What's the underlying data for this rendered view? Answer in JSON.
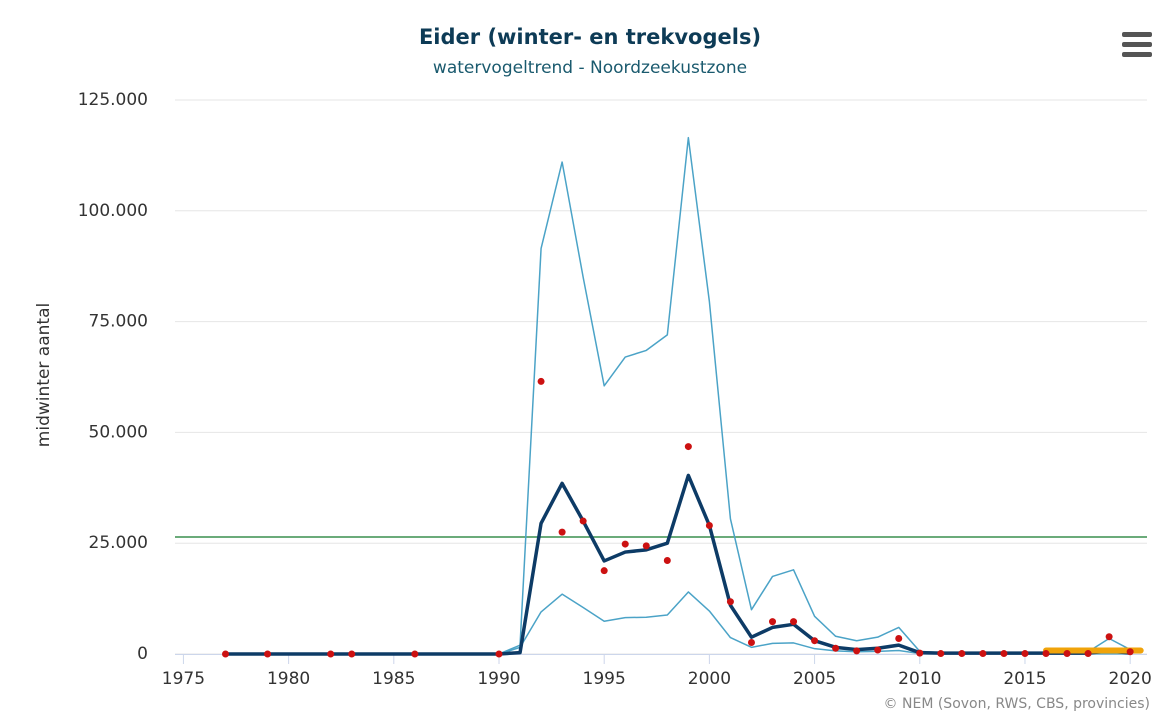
{
  "chart_data": {
    "type": "line",
    "title": "Eider (winter- en trekvogels)",
    "subtitle": "watervogeltrend - Noordzeekustzone",
    "y_label": "midwinter aantal",
    "credit": "© NEM (Sovon, RWS, CBS, provincies)",
    "xlim": [
      1974.6,
      2020.8
    ],
    "xticks": [
      1975,
      1980,
      1985,
      1990,
      1995,
      2000,
      2005,
      2010,
      2015,
      2020
    ],
    "ylim": [
      0,
      125000
    ],
    "yticks": [
      0,
      {
        "value": 25000,
        "label": "25.000"
      },
      {
        "value": 50000,
        "label": "50.000"
      },
      {
        "value": 75000,
        "label": "75.000"
      },
      {
        "value": 100000,
        "label": "100.000"
      },
      {
        "value": 125000,
        "label": "125.000"
      }
    ],
    "grid": true,
    "reference_line": {
      "value": 26400,
      "color": "#3a8f4f"
    },
    "x": [
      1977,
      1978,
      1979,
      1980,
      1981,
      1982,
      1983,
      1984,
      1985,
      1986,
      1987,
      1988,
      1989,
      1990,
      1991,
      1992,
      1993,
      1994,
      1995,
      1996,
      1997,
      1998,
      1999,
      2000,
      2001,
      2002,
      2003,
      2004,
      2005,
      2006,
      2007,
      2008,
      2009,
      2010,
      2011,
      2012,
      2013,
      2014,
      2015,
      2016,
      2017,
      2018,
      2019,
      2020
    ],
    "series": [
      {
        "kind": "line",
        "color": "#4ba3c7",
        "width": 1.5,
        "values": [
          0,
          0,
          0,
          0,
          0,
          0,
          0,
          0,
          0,
          0,
          0,
          0,
          0,
          0,
          2000,
          91500,
          111000,
          85000,
          60500,
          67000,
          68500,
          72000,
          116500,
          79500,
          30500,
          10000,
          17500,
          19000,
          8500,
          4000,
          3000,
          3800,
          6000,
          600,
          300,
          300,
          300,
          300,
          300,
          400,
          400,
          500,
          3500,
          1000
        ]
      },
      {
        "kind": "line",
        "color": "#4ba3c7",
        "width": 1.5,
        "values": [
          0,
          0,
          0,
          0,
          0,
          0,
          0,
          0,
          0,
          0,
          0,
          0,
          0,
          0,
          1500,
          9500,
          13500,
          10500,
          7400,
          8200,
          8300,
          8800,
          14000,
          9700,
          3700,
          1500,
          2400,
          2500,
          1200,
          700,
          500,
          600,
          800,
          100,
          50,
          50,
          50,
          50,
          50,
          50,
          50,
          50,
          50,
          50
        ]
      },
      {
        "kind": "line",
        "color": "#0d3b66",
        "width": 3.5,
        "values": [
          0,
          0,
          0,
          0,
          0,
          0,
          0,
          0,
          0,
          0,
          0,
          0,
          0,
          0,
          300,
          29500,
          38500,
          30000,
          21000,
          23000,
          23500,
          25000,
          40300,
          29000,
          11000,
          3800,
          6000,
          6700,
          3000,
          1500,
          1000,
          1300,
          2000,
          300,
          200,
          200,
          200,
          200,
          200,
          200,
          200,
          200,
          700,
          200
        ]
      },
      {
        "kind": "line",
        "color": "#f0a30a",
        "width": 6,
        "x": [
          2016,
          2020.5
        ],
        "values": [
          800,
          800
        ]
      },
      {
        "kind": "dots",
        "color": "#cc1111",
        "x": [
          1977,
          1979,
          1982,
          1983,
          1986,
          1990,
          1992,
          1993,
          1994,
          1995,
          1996,
          1997,
          1998,
          1999,
          2000,
          2001,
          2002,
          2003,
          2004,
          2005,
          2006,
          2007,
          2008,
          2009,
          2010,
          2011,
          2012,
          2013,
          2014,
          2015,
          2016,
          2017,
          2018,
          2019,
          2020
        ],
        "values": [
          0,
          0,
          0,
          0,
          0,
          0,
          61500,
          27500,
          30000,
          18800,
          24800,
          24400,
          21100,
          46800,
          29000,
          11800,
          2600,
          7300,
          7300,
          3000,
          1300,
          700,
          900,
          3500,
          200,
          100,
          100,
          100,
          100,
          100,
          100,
          100,
          100,
          3900,
          500
        ]
      }
    ]
  }
}
